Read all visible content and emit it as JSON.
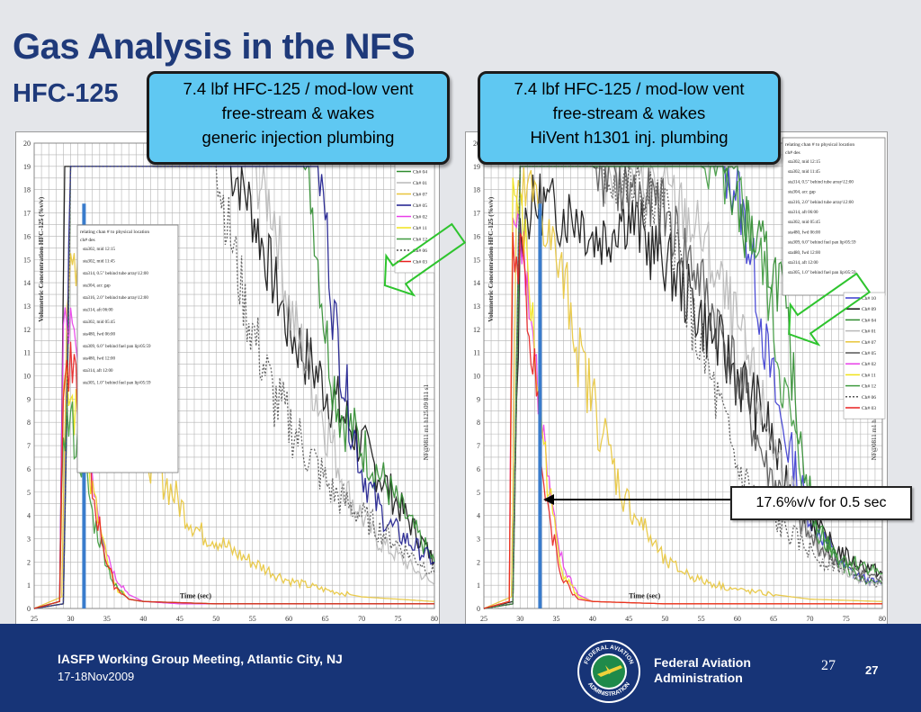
{
  "slide": {
    "title": "Gas Analysis in the NFS",
    "subtitle": "HFC-125",
    "callout_left": [
      "7.4 lbf HFC-125 / mod-low vent",
      "free-stream & wakes",
      "generic injection plumbing"
    ],
    "callout_right": [
      "7.4 lbf HFC-125 / mod-low vent",
      "free-stream & wakes",
      "HiVent h1301 inj. plumbing"
    ],
    "annotation": "17.6%v/v for 0.5 sec",
    "footer": {
      "meeting": "IASFP Working Group Meeting, Atlantic City, NJ",
      "date": "17-18Nov2009",
      "agency_line1": "Federal Aviation",
      "agency_line2": "Administration",
      "page_number_small": "27",
      "page_number": "27",
      "seal_top_text": "FEDERAL AVIATION",
      "seal_bottom_text": "ADMINISTRATION"
    }
  },
  "chart_data": [
    {
      "type": "line",
      "title": "",
      "xlabel": "Time (sec)",
      "ylabel": "Volumetric Concentration HFC-125 (%v/v)",
      "xlim": [
        25,
        80
      ],
      "ylim": [
        0,
        20
      ],
      "x_ticks": [
        25,
        30,
        35,
        40,
        45,
        50,
        55,
        60,
        65,
        70,
        75,
        80
      ],
      "y_ticks": [
        0,
        1,
        2,
        3,
        4,
        5,
        6,
        7,
        8,
        9,
        10,
        11,
        12,
        13,
        14,
        15,
        16,
        17,
        18,
        19,
        20
      ],
      "vertical_label": "NF@0811 m1 h125.09 811 s1",
      "legend_title": [
        "relating chan # to physical location",
        "ch#   des"
      ],
      "legend_locations": [
        "sta302, mid 12:15",
        "sta302, mid 11:45",
        "sta314, 0.5\" behind tube array\\12:00",
        "sta304, acc gap",
        "sta316, 2.0\" behind tube array\\12:00",
        "sta314, aft 06:00",
        "sta302, mid 05:45",
        "sta480, fwd 06:00",
        "sta309, 6.0\" behind fuel pan lip\\05:59",
        "sta480, fwd 12:00",
        "sta314, aft 12:00",
        "sta305, 1.0\" behind fuel pan lip\\05:59"
      ],
      "series": [
        {
          "name": "Ch# 08",
          "color": "#111111",
          "x": [
            25,
            28.5,
            29.2,
            30,
            35,
            40,
            45,
            50,
            52,
            54,
            56,
            58,
            60,
            62,
            64,
            66,
            68,
            70,
            72,
            74,
            76,
            78,
            80
          ],
          "y": [
            0,
            0.3,
            19,
            19,
            19,
            19,
            19,
            19,
            19,
            18,
            16,
            14,
            12,
            11,
            10,
            9,
            8,
            7,
            6,
            5,
            4,
            3,
            2
          ]
        },
        {
          "name": "Ch# 04",
          "color": "#2e8b2e",
          "x": [
            25,
            29,
            30,
            35,
            40,
            45,
            50,
            55,
            60,
            62,
            63,
            64,
            65,
            66,
            67,
            68,
            70,
            72,
            74,
            76,
            78,
            80
          ],
          "y": [
            0,
            0.2,
            19,
            19,
            19,
            19,
            19,
            19,
            19,
            19,
            18,
            15,
            12,
            10,
            8.5,
            8,
            7,
            6,
            5,
            4,
            3,
            2
          ]
        },
        {
          "name": "Ch# 01",
          "color": "#b8b8b8",
          "x": [
            25,
            29,
            30,
            40,
            50,
            55,
            58,
            60,
            62,
            64,
            66,
            68,
            70,
            72,
            74,
            76,
            78,
            80
          ],
          "y": [
            0,
            0.2,
            19,
            19,
            19,
            19,
            17,
            13,
            11,
            9,
            7,
            5,
            4,
            3,
            2.5,
            2,
            1.5,
            1
          ]
        },
        {
          "name": "Ch# 07",
          "color": "#e8c53a",
          "x": [
            25,
            28.8,
            29.5,
            31,
            33,
            35,
            37,
            40,
            42,
            44,
            46,
            48,
            50,
            52,
            55,
            58,
            60,
            65,
            70,
            75,
            80
          ],
          "y": [
            0,
            0.5,
            14,
            14,
            13,
            11,
            9,
            7,
            6,
            5,
            4,
            3.2,
            3,
            2.5,
            2,
            1.5,
            1.2,
            0.8,
            0.5,
            0.4,
            0.3
          ]
        },
        {
          "name": "Ch# 05",
          "color": "#1a1a8c",
          "x": [
            25,
            29,
            30,
            40,
            50,
            55,
            60,
            62,
            64,
            65,
            66,
            68,
            70,
            72,
            74,
            76,
            78,
            80
          ],
          "y": [
            0,
            0.2,
            19,
            19,
            19,
            19,
            19,
            19,
            19,
            17,
            13,
            9,
            6,
            4.5,
            3.5,
            3,
            2.5,
            2
          ]
        },
        {
          "name": "Ch# 02",
          "color": "#e83ee8",
          "x": [
            25,
            28.5,
            29,
            30,
            31,
            32,
            33,
            34,
            35,
            36,
            38,
            40,
            45,
            50,
            60,
            70,
            80
          ],
          "y": [
            0,
            0.3,
            12,
            12,
            10,
            8,
            6,
            4,
            2.5,
            1.5,
            0.6,
            0.3,
            0.2,
            0.2,
            0.2,
            0.2,
            0.2
          ]
        },
        {
          "name": "Ch# 11",
          "color": "#f0e21a",
          "x": [
            25,
            28.5,
            29,
            30,
            31,
            32,
            33,
            34,
            35,
            36,
            38,
            40,
            50,
            60,
            70,
            80
          ],
          "y": [
            0,
            0.3,
            9,
            9,
            8,
            7,
            5,
            3.5,
            2,
            1,
            0.4,
            0.3,
            0.2,
            0.2,
            0.2,
            0.2
          ]
        },
        {
          "name": "Ch# 12",
          "color": "#3e9a3e",
          "x": [
            25,
            28.5,
            29,
            30,
            31,
            32,
            33,
            34,
            35,
            36,
            38,
            40,
            50,
            60,
            70,
            80
          ],
          "y": [
            0,
            0.3,
            8,
            8,
            7,
            6,
            4,
            3,
            2,
            1,
            0.4,
            0.3,
            0.2,
            0.2,
            0.2,
            0.2
          ]
        },
        {
          "name": "Ch# 06",
          "color": "#555555",
          "x": [
            25,
            29,
            30,
            40,
            50,
            52,
            54,
            56,
            58,
            60,
            62,
            64,
            66,
            68,
            70,
            72,
            74,
            76,
            78,
            80
          ],
          "y": [
            0,
            0.2,
            19,
            19,
            19,
            16,
            13,
            11,
            9,
            8,
            7,
            6,
            5,
            4.5,
            4,
            3.5,
            3,
            2.5,
            2,
            1.5
          ]
        },
        {
          "name": "Ch# 03",
          "color": "#e82020",
          "x": [
            25,
            28.5,
            29,
            30,
            31,
            32,
            33,
            34,
            35,
            36,
            38,
            40,
            50,
            60,
            70,
            80
          ],
          "y": [
            0,
            0.3,
            10,
            10,
            9,
            7,
            5,
            3.5,
            2,
            1,
            0.4,
            0.3,
            0.2,
            0.2,
            0.2,
            0.2
          ]
        }
      ]
    },
    {
      "type": "line",
      "title": "",
      "xlabel": "Time (sec)",
      "ylabel": "Volumetric Concentration HFC-125 (%v/v)",
      "xlim": [
        25,
        80
      ],
      "ylim": [
        0,
        20
      ],
      "x_ticks": [
        25,
        30,
        35,
        40,
        45,
        50,
        55,
        60,
        65,
        70,
        75,
        80
      ],
      "y_ticks": [
        0,
        1,
        2,
        3,
        4,
        5,
        6,
        7,
        8,
        9,
        10,
        11,
        12,
        13,
        14,
        15,
        16,
        17,
        18,
        19,
        20
      ],
      "vertical_label": "NF@0811 m1 h125.09 811 s1",
      "legend_title": [
        "relating chan # to physical location",
        "ch#   des"
      ],
      "legend_locations": [
        "sta302, mid 12:15",
        "sta302, mid 11:45",
        "sta314, 0.5\" behind tube array\\12:00",
        "sta304, acc gap",
        "sta316, 2.0\" behind tube array\\12:00",
        "sta314, aft 06:00",
        "sta302, mid 05:45",
        "sta480, fwd 06:00",
        "sta309, 6.0\" behind fuel pan lip\\05:59",
        "sta480, fwd 12:00",
        "sta314, aft 12:00",
        "sta305, 1.0\" behind fuel pan lip\\05:59"
      ],
      "series": [
        {
          "name": "Ch# 10",
          "color": "#3b3bd0",
          "x": [
            25,
            29,
            30,
            40,
            50,
            55,
            58,
            60,
            62,
            64,
            66,
            68,
            70,
            72,
            74,
            76,
            78,
            80
          ],
          "y": [
            0,
            0.2,
            19,
            19,
            19,
            19,
            19,
            18,
            15,
            11,
            8,
            6,
            4,
            3,
            2,
            1.5,
            1.2,
            1
          ]
        },
        {
          "name": "Ch# 09",
          "color": "#111111",
          "x": [
            25,
            29,
            30,
            31,
            33,
            35,
            38,
            40,
            42,
            44,
            46,
            48,
            50,
            52,
            54,
            56,
            58,
            60,
            62,
            64,
            66,
            68,
            70,
            72,
            74,
            76,
            78,
            80
          ],
          "y": [
            0,
            0.3,
            16,
            17,
            17.5,
            17,
            17,
            16,
            16,
            17,
            16.5,
            15.5,
            15,
            14,
            13,
            12,
            11,
            10,
            9,
            8,
            6,
            5,
            4,
            3,
            2.5,
            2,
            1.8,
            1.5
          ]
        },
        {
          "name": "Ch# 04",
          "color": "#2e8b2e",
          "x": [
            25,
            29,
            30,
            40,
            50,
            55,
            58,
            60,
            62,
            64,
            66,
            68,
            70,
            72,
            74,
            76,
            78,
            80
          ],
          "y": [
            0,
            0.2,
            19,
            19,
            19,
            19,
            19,
            17,
            16,
            15,
            14,
            9,
            5,
            3,
            2,
            1.5,
            1.2,
            1
          ]
        },
        {
          "name": "Ch# 01",
          "color": "#b8b8b8",
          "x": [
            25,
            29,
            30,
            40,
            50,
            55,
            60,
            65,
            70,
            75,
            80
          ],
          "y": [
            0,
            0.2,
            19,
            19,
            18,
            16,
            12,
            7,
            3,
            1.5,
            1
          ]
        },
        {
          "name": "Ch# 07",
          "color": "#e8c53a",
          "x": [
            25,
            28.8,
            29.5,
            31,
            33,
            35,
            37,
            38,
            40,
            42,
            44,
            46,
            48,
            50,
            55,
            60,
            70,
            80
          ],
          "y": [
            0,
            0.5,
            17,
            18,
            17,
            15,
            13,
            11,
            9,
            7,
            5,
            4,
            3,
            2,
            1.2,
            0.8,
            0.4,
            0.3
          ]
        },
        {
          "name": "Ch# 05",
          "color": "#555555",
          "x": [
            25,
            29,
            30,
            40,
            45,
            50,
            55,
            60,
            62,
            64,
            66,
            68,
            70,
            72,
            74,
            76,
            78,
            80
          ],
          "y": [
            0,
            0.2,
            19,
            19,
            18,
            17,
            14,
            10,
            8,
            6,
            5,
            4,
            3,
            2.5,
            2,
            1.8,
            1.5,
            1.2
          ]
        },
        {
          "name": "Ch# 02",
          "color": "#e83ee8",
          "x": [
            25,
            28.5,
            29,
            30,
            31,
            32,
            33,
            34,
            35,
            36,
            38,
            40,
            50,
            60,
            70,
            80
          ],
          "y": [
            0,
            0.3,
            17.6,
            17,
            14,
            11,
            8,
            5,
            3,
            1.8,
            0.6,
            0.3,
            0.2,
            0.2,
            0.2,
            0.2
          ]
        },
        {
          "name": "Ch# 11",
          "color": "#f0e21a",
          "x": [
            25,
            28.5,
            29,
            30,
            31,
            32,
            33,
            34,
            35,
            36,
            38,
            40,
            50,
            60,
            70,
            80
          ],
          "y": [
            0,
            0.3,
            18,
            17,
            15,
            11,
            8,
            5,
            3,
            1.5,
            0.5,
            0.3,
            0.2,
            0.2,
            0.2,
            0.2
          ]
        },
        {
          "name": "Ch# 12",
          "color": "#3e9a3e",
          "x": [
            25,
            29,
            30,
            40,
            50,
            55,
            60,
            62,
            64,
            66,
            68,
            70,
            72,
            74,
            76,
            78,
            80
          ],
          "y": [
            0,
            0.2,
            19,
            19,
            19,
            19,
            18,
            16,
            14,
            10,
            7,
            4,
            3,
            2.2,
            2,
            1.8,
            1.5
          ]
        },
        {
          "name": "Ch# 06",
          "color": "#555555",
          "x": [
            25,
            29,
            30,
            40,
            50,
            52,
            54,
            56,
            58,
            60,
            62,
            64,
            66,
            68,
            70,
            72,
            74,
            76,
            78,
            80
          ],
          "y": [
            0,
            0.2,
            19,
            19,
            17,
            15,
            12,
            10,
            8,
            6,
            5,
            4,
            3.5,
            3,
            2.5,
            2,
            1.8,
            1.5,
            1.2,
            1
          ]
        },
        {
          "name": "Ch# 03",
          "color": "#e82020",
          "x": [
            25,
            28.5,
            29,
            30,
            31,
            32,
            33,
            34,
            35,
            36,
            38,
            40,
            50,
            60,
            70,
            80
          ],
          "y": [
            0,
            0.3,
            16,
            15,
            13,
            10,
            7,
            4,
            2.5,
            1.2,
            0.4,
            0.3,
            0.2,
            0.2,
            0.2,
            0.2
          ]
        }
      ]
    }
  ]
}
